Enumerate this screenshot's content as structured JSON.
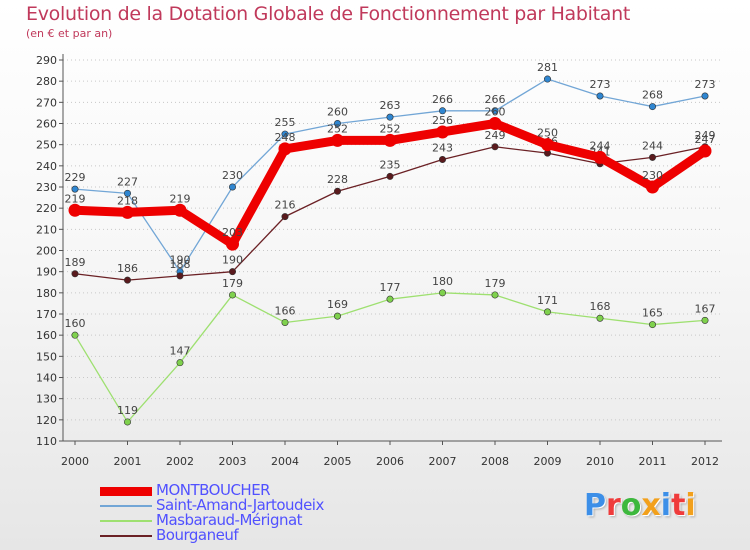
{
  "header": {
    "title": "Evolution de la Dotation Globale de Fonctionnement par Habitant",
    "subtitle": "(en € et par an)"
  },
  "colors": {
    "background_top": "#ffffff",
    "background_bottom": "#e6e6e6",
    "axis": "#555555",
    "grid": "#c8c8c8",
    "title": "#c0395b",
    "legend_text": "#5151ff"
  },
  "legend": {
    "items": [
      {
        "label": "MONTBOUCHER",
        "color": "#ee0000"
      },
      {
        "label": "Saint-Amand-Jartoudeix",
        "color": "#72a6d6"
      },
      {
        "label": "Masbaraud-Mérignat",
        "color": "#9ee070"
      },
      {
        "label": "Bourganeuf",
        "color": "#6b2125"
      }
    ]
  },
  "logo": {
    "letters": [
      {
        "char": "P",
        "color": "#3c8fe8"
      },
      {
        "char": "r",
        "color": "#ef3b3b"
      },
      {
        "char": "o",
        "color": "#3db83d"
      },
      {
        "char": "x",
        "color": "#f2a01c"
      },
      {
        "char": "i",
        "color": "#3c8fe8"
      },
      {
        "char": "t",
        "color": "#ef3b3b"
      },
      {
        "char": "i",
        "color": "#f2a01c"
      }
    ]
  },
  "chart_data": {
    "type": "line",
    "title": "Evolution de la Dotation Globale de Fonctionnement par Habitant",
    "subtitle": "(en € et par an)",
    "xlabel": "",
    "ylabel": "",
    "x": [
      "2000",
      "2001",
      "2002",
      "2003",
      "2004",
      "2005",
      "2006",
      "2007",
      "2008",
      "2009",
      "2010",
      "2011",
      "2012"
    ],
    "ylim": [
      110,
      290
    ],
    "yticks": [
      110,
      120,
      130,
      140,
      150,
      160,
      170,
      180,
      190,
      200,
      210,
      220,
      230,
      240,
      250,
      260,
      270,
      280,
      290
    ],
    "grid": true,
    "series": [
      {
        "name": "Saint-Amand-Jartoudeix",
        "color": "#72a6d6",
        "marker_color": "#2f86d1",
        "values": [
          229,
          227,
          190,
          230,
          255,
          260,
          263,
          266,
          266,
          281,
          273,
          268,
          273
        ]
      },
      {
        "name": "Masbaraud-Mérignat",
        "color": "#9ee070",
        "marker_color": "#7fd14d",
        "values": [
          160,
          119,
          147,
          179,
          166,
          169,
          177,
          180,
          179,
          171,
          168,
          165,
          167
        ]
      },
      {
        "name": "Bourganeuf",
        "color": "#6b2125",
        "marker_color": "#5a1a1d",
        "values": [
          189,
          186,
          188,
          190,
          216,
          228,
          235,
          243,
          249,
          246,
          241,
          244,
          249
        ]
      },
      {
        "name": "MONTBOUCHER",
        "color": "#ee0000",
        "marker_color": "#ee0000",
        "values": [
          219,
          218,
          219,
          203,
          248,
          252,
          252,
          256,
          260,
          250,
          244,
          230,
          247
        ]
      }
    ]
  }
}
